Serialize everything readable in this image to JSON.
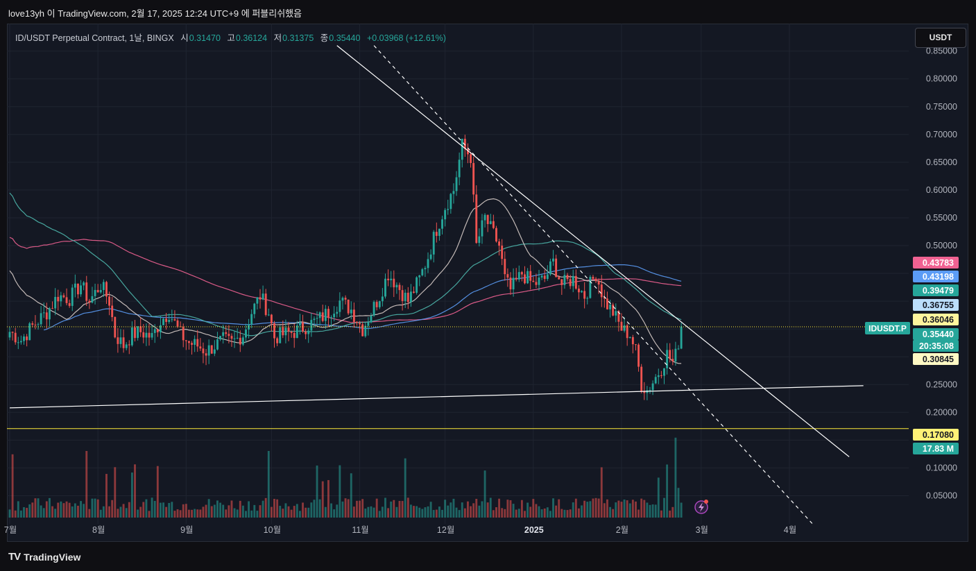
{
  "header": {
    "caption": "love13yh 이 TradingView.com, 2월 17, 2025 12:24 UTC+9 에 퍼블리쉬했음"
  },
  "legend": {
    "symbol": "ID/USDT Perpetual Contract, 1날, BINGX",
    "open_label": "시",
    "open": "0.31470",
    "high_label": "고",
    "high": "0.36124",
    "low_label": "저",
    "low": "0.31375",
    "close_label": "종",
    "close": "0.35440",
    "change": "+0.03968 (+12.61%)"
  },
  "currency_button": "USDT",
  "footer": {
    "logo_text": "TradingView",
    "logo_mark": "TV"
  },
  "colors": {
    "background": "#141823",
    "up": "#26a69a",
    "down": "#ef5350",
    "ma_pink": "#f06292",
    "ma_blue": "#5b9cf6",
    "ma_teal": "#4db6ac",
    "ma_tan": "#d7ccc8",
    "yellow": "#ffeb3b",
    "white": "#ffffff"
  },
  "chart_data": {
    "type": "candlestick",
    "symbol": "IDUSDT.P",
    "x_tick_labels": [
      "7월",
      "8월",
      "9월",
      "10월",
      "11월",
      "12월",
      "2025",
      "2월",
      "3월",
      "4월"
    ],
    "x_ticks": [
      {
        "label": "7월",
        "day": 0
      },
      {
        "label": "8월",
        "day": 31
      },
      {
        "label": "9월",
        "day": 62
      },
      {
        "label": "10월",
        "day": 92
      },
      {
        "label": "11월",
        "day": 123
      },
      {
        "label": "12월",
        "day": 153
      },
      {
        "label": "2025",
        "day": 184
      },
      {
        "label": "2월",
        "day": 215
      },
      {
        "label": "3월",
        "day": 243
      },
      {
        "label": "4월",
        "day": 274
      }
    ],
    "y_ticks": [
      "0.05000",
      "0.10000",
      "0.20000",
      "0.25000",
      "0.50000",
      "0.55000",
      "0.60000",
      "0.65000",
      "0.70000",
      "0.75000",
      "0.80000",
      "0.85000"
    ],
    "ylim": [
      0.0,
      0.87
    ],
    "price_anchors": [
      {
        "day": 0,
        "price": 0.345
      },
      {
        "day": 4,
        "price": 0.33
      },
      {
        "day": 8,
        "price": 0.355
      },
      {
        "day": 13,
        "price": 0.38
      },
      {
        "day": 17,
        "price": 0.41
      },
      {
        "day": 21,
        "price": 0.405
      },
      {
        "day": 25,
        "price": 0.43
      },
      {
        "day": 28,
        "price": 0.4
      },
      {
        "day": 32,
        "price": 0.43
      },
      {
        "day": 35,
        "price": 0.4
      },
      {
        "day": 37,
        "price": 0.34
      },
      {
        "day": 40,
        "price": 0.32
      },
      {
        "day": 43,
        "price": 0.34
      },
      {
        "day": 46,
        "price": 0.345
      },
      {
        "day": 50,
        "price": 0.335
      },
      {
        "day": 53,
        "price": 0.365
      },
      {
        "day": 56,
        "price": 0.38
      },
      {
        "day": 60,
        "price": 0.34
      },
      {
        "day": 63,
        "price": 0.325
      },
      {
        "day": 66,
        "price": 0.32
      },
      {
        "day": 69,
        "price": 0.31
      },
      {
        "day": 72,
        "price": 0.32
      },
      {
        "day": 75,
        "price": 0.33
      },
      {
        "day": 78,
        "price": 0.325
      },
      {
        "day": 82,
        "price": 0.34
      },
      {
        "day": 85,
        "price": 0.38
      },
      {
        "day": 88,
        "price": 0.41
      },
      {
        "day": 91,
        "price": 0.38
      },
      {
        "day": 93,
        "price": 0.335
      },
      {
        "day": 96,
        "price": 0.34
      },
      {
        "day": 100,
        "price": 0.345
      },
      {
        "day": 104,
        "price": 0.355
      },
      {
        "day": 108,
        "price": 0.365
      },
      {
        "day": 112,
        "price": 0.38
      },
      {
        "day": 116,
        "price": 0.4
      },
      {
        "day": 120,
        "price": 0.385
      },
      {
        "day": 124,
        "price": 0.35
      },
      {
        "day": 126,
        "price": 0.37
      },
      {
        "day": 130,
        "price": 0.41
      },
      {
        "day": 133,
        "price": 0.45
      },
      {
        "day": 136,
        "price": 0.43
      },
      {
        "day": 140,
        "price": 0.4
      },
      {
        "day": 144,
        "price": 0.44
      },
      {
        "day": 147,
        "price": 0.48
      },
      {
        "day": 150,
        "price": 0.53
      },
      {
        "day": 153,
        "price": 0.57
      },
      {
        "day": 156,
        "price": 0.6
      },
      {
        "day": 159,
        "price": 0.68
      },
      {
        "day": 162,
        "price": 0.66
      },
      {
        "day": 164,
        "price": 0.5
      },
      {
        "day": 167,
        "price": 0.55
      },
      {
        "day": 170,
        "price": 0.52
      },
      {
        "day": 172,
        "price": 0.5
      },
      {
        "day": 174,
        "price": 0.44
      },
      {
        "day": 176,
        "price": 0.42
      },
      {
        "day": 180,
        "price": 0.45
      },
      {
        "day": 184,
        "price": 0.43
      },
      {
        "day": 188,
        "price": 0.44
      },
      {
        "day": 191,
        "price": 0.47
      },
      {
        "day": 194,
        "price": 0.43
      },
      {
        "day": 198,
        "price": 0.44
      },
      {
        "day": 202,
        "price": 0.41
      },
      {
        "day": 206,
        "price": 0.45
      },
      {
        "day": 209,
        "price": 0.4
      },
      {
        "day": 212,
        "price": 0.38
      },
      {
        "day": 215,
        "price": 0.35
      },
      {
        "day": 218,
        "price": 0.34
      },
      {
        "day": 220,
        "price": 0.31
      },
      {
        "day": 222,
        "price": 0.25
      },
      {
        "day": 224,
        "price": 0.24
      },
      {
        "day": 226,
        "price": 0.255
      },
      {
        "day": 229,
        "price": 0.28
      },
      {
        "day": 231,
        "price": 0.305
      },
      {
        "day": 233,
        "price": 0.29
      },
      {
        "day": 235,
        "price": 0.3147
      },
      {
        "day": 236,
        "price": 0.3544
      }
    ],
    "moving_averages": [
      {
        "color": "#f06292",
        "period": 200,
        "last": 0.43783
      },
      {
        "color": "#5b9cf6",
        "period": 100,
        "last": 0.43198
      },
      {
        "color": "#4db6ac",
        "period": 50,
        "last": 0.39479
      },
      {
        "color": "#d7ccc8",
        "period": 20,
        "last": 0.30845
      }
    ],
    "ohlc_last": {
      "open": 0.3147,
      "high": 0.36124,
      "low": 0.31375,
      "close": 0.3544
    },
    "horizontal_lines": [
      0.354,
      0.1708
    ],
    "trendlines": [
      {
        "style": "solid",
        "from": {
          "day": 115,
          "price": 0.86
        },
        "to": {
          "day": 295,
          "price": 0.12
        }
      },
      {
        "style": "dashed",
        "from": {
          "day": 128,
          "price": 0.86
        },
        "to": {
          "day": 282,
          "price": 0.0
        }
      },
      {
        "style": "solid",
        "from": {
          "day": 0,
          "price": 0.208
        },
        "to": {
          "day": 300,
          "price": 0.248
        }
      }
    ],
    "volume_scale_max_millions": 50,
    "last_volume_millions": 17.83,
    "price_labels": [
      {
        "text": "0.43783",
        "bg": "#f06292",
        "fg": "#ffffff",
        "price": 0.43783
      },
      {
        "text": "0.43198",
        "bg": "#5b9cf6",
        "fg": "#ffffff",
        "price": 0.43198
      },
      {
        "text": "0.39479",
        "bg": "#26a69a",
        "fg": "#ffffff",
        "price": 0.39479
      },
      {
        "text": "0.36755",
        "bg": "#bbdefb",
        "fg": "#131722",
        "price": 0.36755
      },
      {
        "text": "0.36046",
        "bg": "#fff59d",
        "fg": "#131722",
        "price": 0.36046
      },
      {
        "text": "0.35440",
        "bg": "#26a69a",
        "fg": "#ffffff",
        "price": 0.3544
      },
      {
        "text": "20:35:08",
        "bg": "#26a69a",
        "fg": "#ffffff",
        "price": 0.3544
      },
      {
        "text": "0.30845",
        "bg": "#fff9c4",
        "fg": "#131722",
        "price": 0.30845
      },
      {
        "text": "0.17080",
        "bg": "#fff176",
        "fg": "#131722",
        "price": 0.1708
      },
      {
        "text": "17.83 M",
        "bg": "#26a69a",
        "fg": "#ffffff",
        "price": 0.1708
      }
    ],
    "symbol_tag": "IDUSDT.P"
  }
}
